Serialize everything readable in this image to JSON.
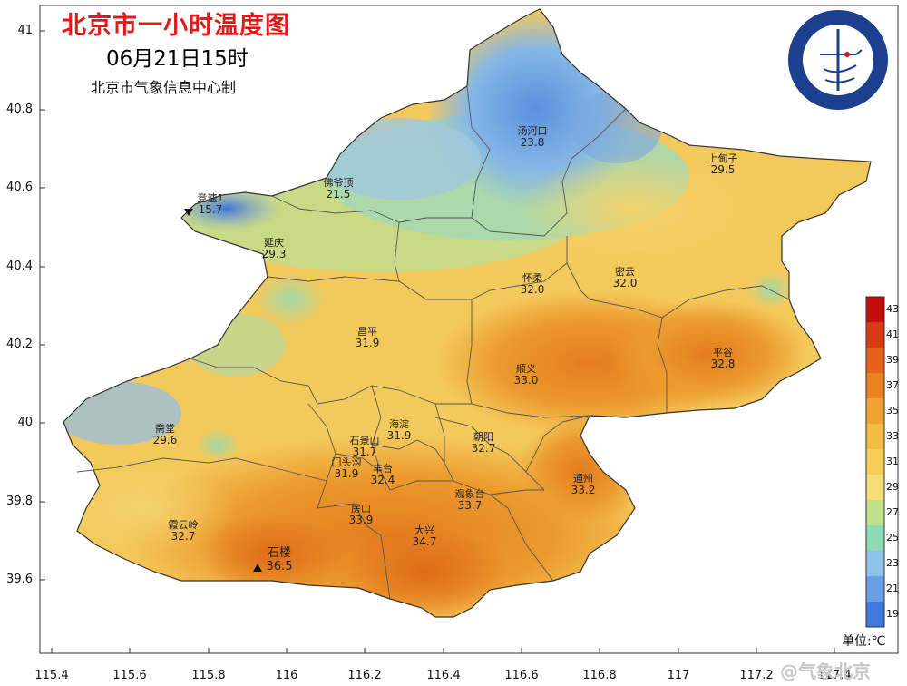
{
  "title": "北京市一小时温度图",
  "time": "06月21日15时",
  "producer": "北京市气象信息中心制",
  "logo": {
    "ring_text": "BEIJING METEOROLOGICAL SERVICE",
    "cn_text": "北京市气象局"
  },
  "legend": {
    "unit_label": "单位:℃",
    "ticks": [
      "43",
      "41",
      "39",
      "37",
      "35",
      "33",
      "31",
      "29",
      "27",
      "25",
      "23",
      "21",
      "19"
    ],
    "colors": [
      "#c40d0d",
      "#d93a13",
      "#e5631a",
      "#ea8222",
      "#f0a234",
      "#f5bb47",
      "#f7cc59",
      "#f4de78",
      "#bfe18a",
      "#8ed9b6",
      "#91c1e8",
      "#6a9fe3",
      "#3f78db"
    ]
  },
  "axes": {
    "y_ticks": [
      "41",
      "40.8",
      "40.6",
      "40.4",
      "40.2",
      "40",
      "39.8",
      "39.6"
    ],
    "x_ticks": [
      "115.4",
      "115.6",
      "115.8",
      "116",
      "116.2",
      "116.4",
      "116.6",
      "116.8",
      "117",
      "117.2",
      "117.4"
    ]
  },
  "stations": [
    {
      "name": "汤河口",
      "temp": "23.8"
    },
    {
      "name": "上甸子",
      "temp": "29.5"
    },
    {
      "name": "佛爷顶",
      "temp": "21.5"
    },
    {
      "name": "竞速1",
      "temp": "15.7"
    },
    {
      "name": "延庆",
      "temp": "29.3"
    },
    {
      "name": "怀柔",
      "temp": "32.0"
    },
    {
      "name": "密云",
      "temp": "32.0"
    },
    {
      "name": "昌平",
      "temp": "31.9"
    },
    {
      "name": "平谷",
      "temp": "32.8"
    },
    {
      "name": "顺义",
      "temp": "33.0"
    },
    {
      "name": "斋堂",
      "temp": "29.6"
    },
    {
      "name": "海淀",
      "temp": "31.9"
    },
    {
      "name": "石景山",
      "temp": "31.7"
    },
    {
      "name": "朝阳",
      "temp": "32.7"
    },
    {
      "name": "门头沟",
      "temp": "31.9"
    },
    {
      "name": "丰台",
      "temp": "32.4"
    },
    {
      "name": "通州",
      "temp": "33.2"
    },
    {
      "name": "观象台",
      "temp": "33.7"
    },
    {
      "name": "房山",
      "temp": "33.9"
    },
    {
      "name": "霞云岭",
      "temp": "32.7"
    },
    {
      "name": "石楼",
      "temp": "36.5"
    },
    {
      "name": "大兴",
      "temp": "34.7"
    }
  ],
  "watermark": "@气象北京"
}
